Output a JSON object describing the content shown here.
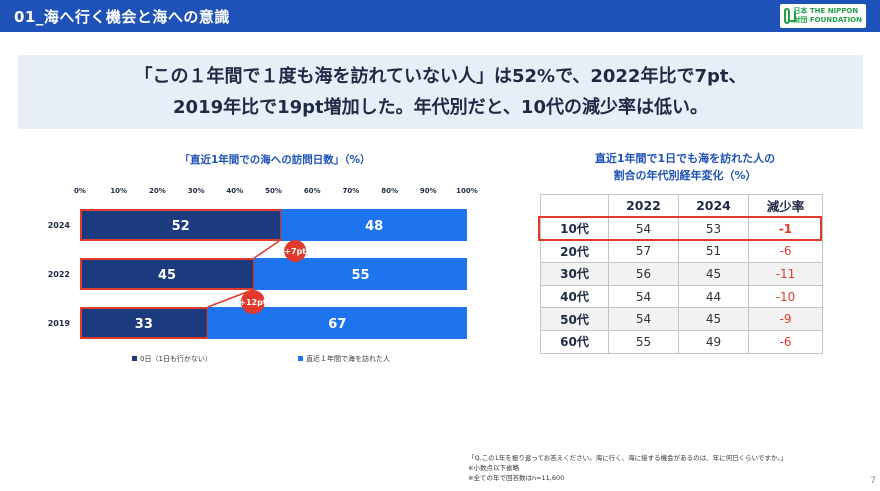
{
  "header": {
    "title": "01_海へ行く機会と海への意識"
  },
  "logo": {
    "line1": "日本 THE NIPPON",
    "line2": "財団 FOUNDATION"
  },
  "headline": {
    "line1": "「この１年間で１度も海を訪れていない人」は52%で、2022年比で7pt、",
    "line2": "2019年比で19pt増加した。年代別だと、10代の減少率は低い。"
  },
  "chart_data": {
    "type": "bar",
    "orientation": "horizontal",
    "stacked": true,
    "title": "「直近1年間での海への訪問日数」（%）",
    "categories": [
      "2024",
      "2022",
      "2019"
    ],
    "series": [
      {
        "name": "0日（1日も行かない）",
        "values": [
          52,
          45,
          33
        ],
        "color": "#1c3a7e"
      },
      {
        "name": "直近１年間で海を訪れた人",
        "values": [
          48,
          55,
          67
        ],
        "color": "#1e74ee"
      }
    ],
    "xlim": [
      0,
      100
    ],
    "xticks": [
      "0%",
      "10%",
      "20%",
      "30%",
      "40%",
      "50%",
      "60%",
      "70%",
      "80%",
      "90%",
      "100%"
    ],
    "annotations": [
      "+7pt",
      "+12pt"
    ],
    "legend": "bottom"
  },
  "table": {
    "title_line1": "直近1年間で1日でも海を訪れた人の",
    "title_line2": "割合の年代別経年変化（%）",
    "headers": [
      "",
      "2022",
      "2024",
      "減少率"
    ],
    "rows": [
      {
        "age": "10代",
        "y2022": "54",
        "y2024": "53",
        "rate": "-1"
      },
      {
        "age": "20代",
        "y2022": "57",
        "y2024": "51",
        "rate": "-6"
      },
      {
        "age": "30代",
        "y2022": "56",
        "y2024": "45",
        "rate": "-11"
      },
      {
        "age": "40代",
        "y2022": "54",
        "y2024": "44",
        "rate": "-10"
      },
      {
        "age": "50代",
        "y2022": "54",
        "y2024": "45",
        "rate": "-9"
      },
      {
        "age": "60代",
        "y2022": "55",
        "y2024": "49",
        "rate": "-6"
      }
    ]
  },
  "footnote": {
    "line1": "「Q.この1年を振り返ってお答えください。海に行く、海に接する機会があるのは、年に何日くらいですか。」",
    "line2": "※小数点以下省略",
    "line3": "※全ての年で回答数はn=11,600"
  },
  "page_number": "7"
}
